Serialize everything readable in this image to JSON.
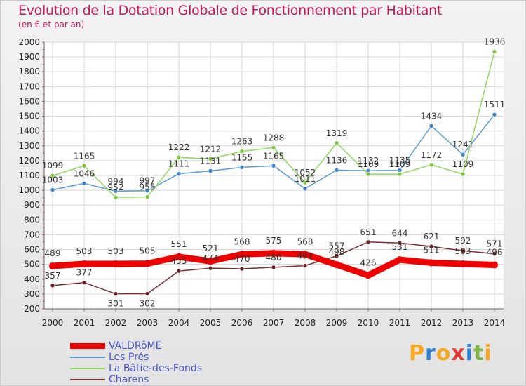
{
  "title": "Evolution de la Dotation Globale de Fonctionnement par Habitant",
  "subtitle": "(en € et par an)",
  "logo": {
    "letters": [
      "P",
      "r",
      "o",
      "x",
      "i",
      "t",
      "i"
    ],
    "colors": [
      "#f5a623",
      "#2f80d1",
      "#f5a623",
      "#e53935",
      "#2f80d1",
      "#7cb342",
      "#f5a623"
    ]
  },
  "chart_data": {
    "type": "line",
    "x": [
      "2000",
      "2001",
      "2002",
      "2003",
      "2004",
      "2005",
      "2006",
      "2007",
      "2008",
      "2009",
      "2010",
      "2011",
      "2012",
      "2013",
      "2014"
    ],
    "ylim": [
      200,
      2000
    ],
    "yticks": [
      "200",
      "300",
      "400",
      "500",
      "600",
      "700",
      "800",
      "900",
      "1000",
      "1100",
      "1200",
      "1300",
      "1400",
      "1500",
      "1600",
      "1700",
      "1800",
      "1900",
      "2000"
    ],
    "grid": true,
    "legend_position": "bottom-left",
    "series": [
      {
        "name": "VALDRôME",
        "color": "#ee0000",
        "width": 9,
        "marker_color": "#ee0000",
        "values": [
          489,
          503,
          503,
          505,
          551,
          521,
          568,
          575,
          568,
          498,
          426,
          531,
          511,
          503,
          496
        ],
        "labels": [
          "489",
          "503",
          "503",
          "505",
          "551",
          "521",
          "568",
          "575",
          "568",
          "498",
          "426",
          "531",
          "511",
          "503",
          "496"
        ]
      },
      {
        "name": "Les Prés",
        "color": "#5b9bd5",
        "width": 1.5,
        "marker_color": "#3b84c8",
        "values": [
          1003,
          1046,
          994,
          997,
          1111,
          1131,
          1155,
          1165,
          1011,
          1136,
          1132,
          1135,
          1434,
          1241,
          1511
        ],
        "labels": [
          "1003",
          "1046",
          "994",
          "997",
          "1111",
          "1131",
          "1155",
          "1165",
          "1011",
          "1136",
          "1132",
          "1135",
          "1434",
          "1241",
          "1511"
        ]
      },
      {
        "name": "La Bâtie-des-Fonds",
        "color": "#8fd860",
        "width": 1.5,
        "marker_color": "#7cc63f",
        "values": [
          1099,
          1165,
          952,
          955,
          1222,
          1212,
          1263,
          1288,
          1052,
          1319,
          1109,
          1109,
          1172,
          1109,
          1936
        ],
        "labels": [
          "1099",
          "1165",
          "952",
          "955",
          "1222",
          "1212",
          "1263",
          "1288",
          "1052",
          "1319",
          "1109",
          "1109",
          "1172",
          "1109",
          "1936"
        ]
      },
      {
        "name": "Charens",
        "color": "#7a2e2e",
        "width": 1.5,
        "marker_color": "#6b1e1e",
        "values": [
          357,
          377,
          301,
          302,
          455,
          474,
          470,
          480,
          491,
          557,
          651,
          644,
          621,
          592,
          571
        ],
        "labels": [
          "357",
          "377",
          "301",
          "302",
          "455",
          "474",
          "470",
          "480",
          "491",
          "557",
          "651",
          "644",
          "621",
          "592",
          "571"
        ]
      }
    ]
  }
}
